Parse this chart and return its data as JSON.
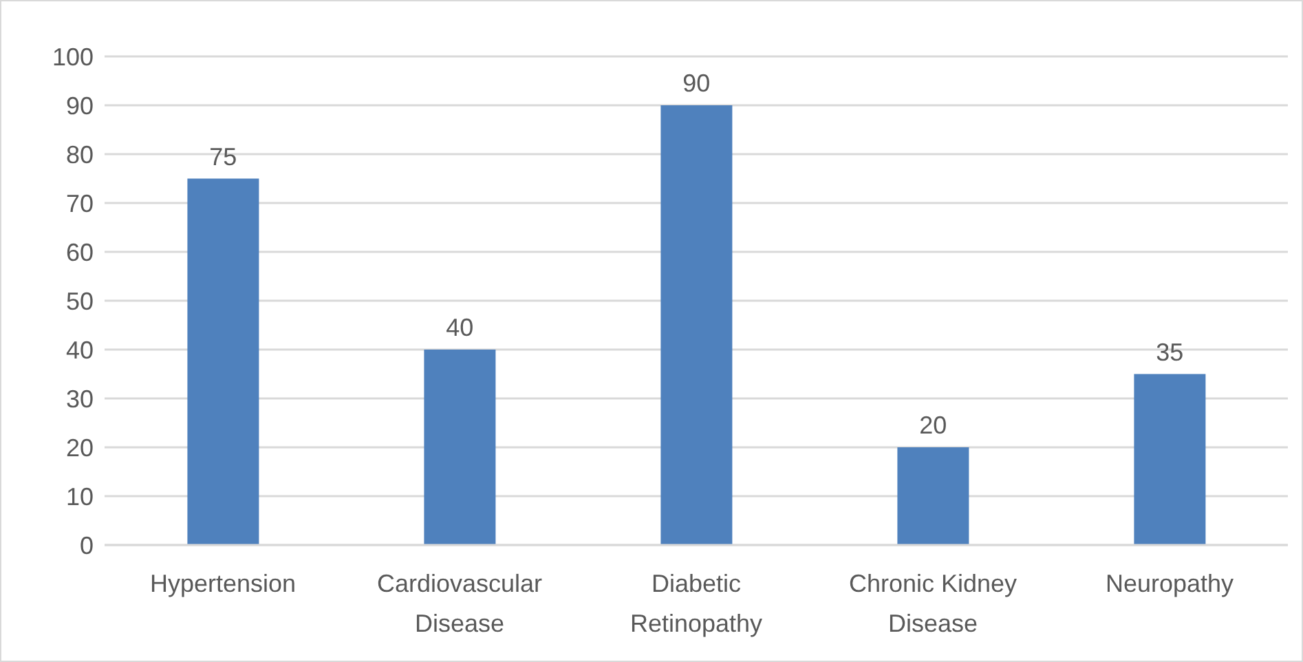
{
  "chart_data": {
    "type": "bar",
    "categories": [
      "Hypertension",
      "Cardiovascular Disease",
      "Diabetic Retinopathy",
      "Chronic Kidney Disease",
      "Neuropathy"
    ],
    "values": [
      75,
      40,
      90,
      20,
      35
    ],
    "color": "#4f81bd",
    "ylim": [
      0,
      100
    ],
    "yticks": [
      0,
      10,
      20,
      30,
      40,
      50,
      60,
      70,
      80,
      90,
      100
    ],
    "grid": "y",
    "data_labels": true
  }
}
